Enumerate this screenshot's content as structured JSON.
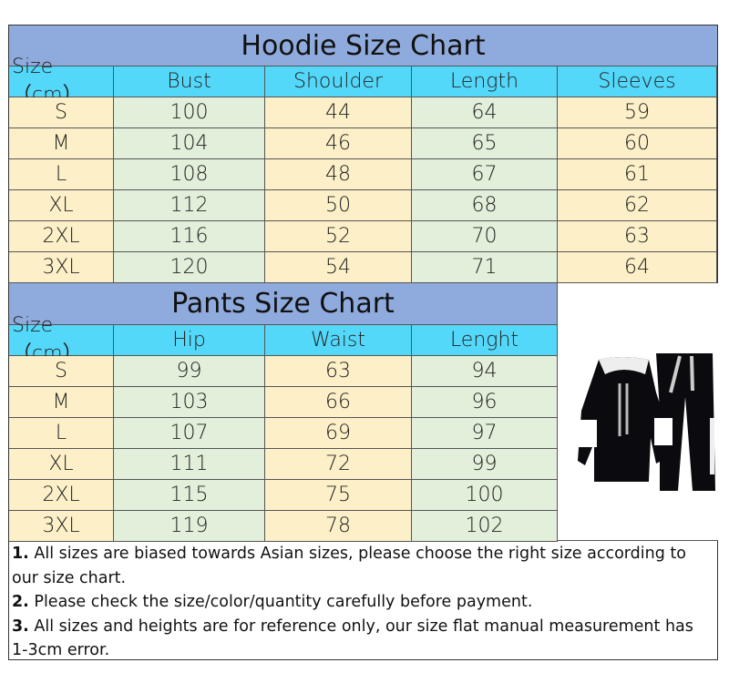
{
  "hoodie": {
    "title": "Hoodie Size Chart",
    "headers": [
      "Size（cm）",
      "Bust",
      "Shoulder",
      "Length",
      "Sleeves"
    ],
    "rows": [
      [
        "S",
        "100",
        "44",
        "64",
        "59"
      ],
      [
        "M",
        "104",
        "46",
        "65",
        "60"
      ],
      [
        "L",
        "108",
        "48",
        "67",
        "61"
      ],
      [
        "XL",
        "112",
        "50",
        "68",
        "62"
      ],
      [
        "2XL",
        "116",
        "52",
        "70",
        "63"
      ],
      [
        "3XL",
        "120",
        "54",
        "71",
        "64"
      ]
    ]
  },
  "pants": {
    "title": "Pants Size Chart",
    "headers": [
      "Size（cm）",
      "Hip",
      "Waist",
      "Lenght"
    ],
    "rows": [
      [
        "S",
        "99",
        "63",
        "94"
      ],
      [
        "M",
        "103",
        "66",
        "96"
      ],
      [
        "L",
        "107",
        "69",
        "97"
      ],
      [
        "XL",
        "111",
        "72",
        "99"
      ],
      [
        "2XL",
        "115",
        "75",
        "100"
      ],
      [
        "3XL",
        "119",
        "78",
        "102"
      ]
    ]
  },
  "notes": [
    {
      "num": "1.",
      "text": " All sizes are biased towards Asian sizes, please choose the right size according to our size chart."
    },
    {
      "num": "2.",
      "text": " Please check the size/color/quantity carefully before payment."
    },
    {
      "num": "3.",
      "text": " All sizes and heights are for reference only, our size flat manual measurement has 1-3cm error."
    }
  ],
  "colors": {
    "title_bg": "#8faadc",
    "header_bg": "#54d8fa",
    "cream": "#fdf0c8",
    "green": "#e2efda"
  },
  "photo": "black-hoodie-and-pants-tracksuit"
}
